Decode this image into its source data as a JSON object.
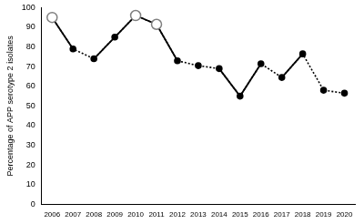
{
  "chart_data": {
    "type": "line",
    "y_label": "Percentage of APP serotype 2 isolates",
    "categories": [
      "2006",
      "2007",
      "2008",
      "2009",
      "2010",
      "2011",
      "2012",
      "2013",
      "2014",
      "2015",
      "2016",
      "2017",
      "2018",
      "2019",
      "2020"
    ],
    "series": [
      {
        "color": "#000000",
        "line_style": "dotted",
        "marker": "circle",
        "values": [
          95,
          79,
          74,
          85,
          96,
          91.5,
          73,
          70.5,
          69,
          55,
          71.5,
          64.5,
          76.5,
          58,
          56.5
        ]
      },
      {
        "color": "#000000",
        "line_style": "solid",
        "marker": "none",
        "values": [
          95,
          79,
          null,
          null,
          null,
          null,
          null,
          null,
          null,
          null,
          null,
          null,
          null,
          null,
          null
        ]
      },
      {
        "color": "#000000",
        "line_style": "solid",
        "marker": "none",
        "values": [
          null,
          null,
          74,
          85,
          96,
          91.5,
          73,
          null,
          null,
          null,
          null,
          null,
          null,
          null,
          null
        ]
      },
      {
        "color": "#000000",
        "line_style": "solid",
        "marker": "none",
        "values": [
          null,
          null,
          null,
          null,
          null,
          null,
          null,
          null,
          69,
          55,
          71.5,
          null,
          null,
          null,
          null
        ]
      },
      {
        "color": "#000000",
        "line_style": "solid",
        "marker": "none",
        "values": [
          null,
          null,
          null,
          null,
          null,
          null,
          null,
          null,
          null,
          null,
          null,
          64.5,
          76.5,
          null,
          null
        ]
      },
      {
        "color": "#808080",
        "line_style": "none",
        "marker": "open_circle",
        "values": [
          95,
          null,
          null,
          null,
          96,
          91.5,
          null,
          null,
          null,
          null,
          null,
          null,
          null,
          null,
          null
        ]
      }
    ],
    "ylim": [
      0,
      100
    ],
    "yticks": [
      0,
      10,
      20,
      30,
      40,
      50,
      60,
      70,
      80,
      90,
      100
    ],
    "grid": false
  }
}
